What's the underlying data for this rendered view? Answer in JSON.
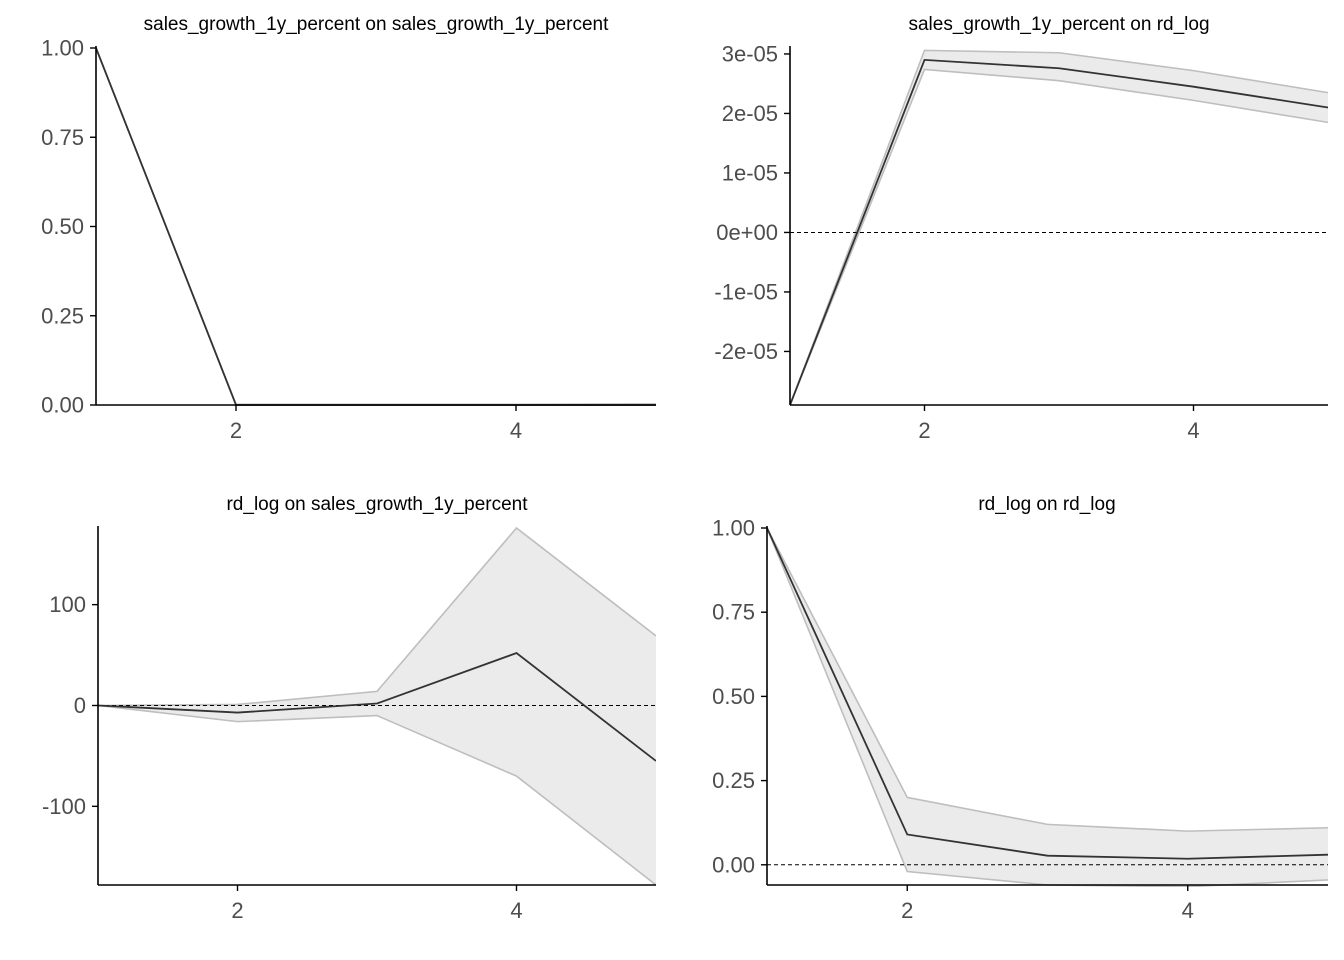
{
  "chart_data": [
    {
      "type": "line",
      "title": "sales_growth_1y_percent on sales_growth_1y_percent",
      "x": [
        1,
        2,
        3,
        4,
        5
      ],
      "xlim": [
        1,
        5
      ],
      "ylim": [
        0,
        1
      ],
      "xticks": [
        2,
        4
      ],
      "xtick_labels": [
        "2",
        "4"
      ],
      "yticks": [
        0,
        0.25,
        0.5,
        0.75,
        1
      ],
      "ytick_labels": [
        "0.00",
        "0.25",
        "0.50",
        "0.75",
        "1.00"
      ],
      "zero_line": false,
      "series": [
        {
          "role": "irf",
          "values": [
            1,
            0.0,
            0.0,
            0.0,
            0.0
          ]
        },
        {
          "role": "lower",
          "values": [
            1,
            0.0,
            0.0,
            0.0,
            0.0
          ]
        },
        {
          "role": "upper",
          "values": [
            1,
            0.002,
            0.002,
            0.002,
            0.003
          ]
        }
      ]
    },
    {
      "type": "line",
      "title": "sales_growth_1y_percent on rd_log",
      "x": [
        1,
        2,
        3,
        4,
        5
      ],
      "xlim": [
        1,
        5
      ],
      "ylim": [
        -2.9e-05,
        3.1e-05
      ],
      "xticks": [
        2,
        4
      ],
      "xtick_labels": [
        "2",
        "4"
      ],
      "yticks": [
        -2e-05,
        -1e-05,
        0,
        1e-05,
        2e-05,
        3e-05
      ],
      "ytick_labels": [
        "-2e-05",
        "-1e-05",
        "0e+00",
        "1e-05",
        "2e-05",
        "3e-05"
      ],
      "zero_line": true,
      "series": [
        {
          "role": "irf",
          "values": [
            -2.9e-05,
            2.9e-05,
            2.76e-05,
            2.45e-05,
            2.1e-05
          ]
        },
        {
          "role": "lower",
          "values": [
            -2.9e-05,
            2.74e-05,
            2.55e-05,
            2.22e-05,
            1.85e-05
          ]
        },
        {
          "role": "upper",
          "values": [
            -2.9e-05,
            3.06e-05,
            3.02e-05,
            2.72e-05,
            2.35e-05
          ]
        }
      ]
    },
    {
      "type": "line",
      "title": "rd_log on sales_growth_1y_percent",
      "x": [
        1,
        2,
        3,
        4,
        5
      ],
      "xlim": [
        1,
        5
      ],
      "ylim": [
        -178,
        176
      ],
      "xticks": [
        2,
        4
      ],
      "xtick_labels": [
        "2",
        "4"
      ],
      "yticks": [
        -100,
        0,
        100
      ],
      "ytick_labels": [
        "-100",
        "0",
        "100"
      ],
      "zero_line": true,
      "series": [
        {
          "role": "irf",
          "values": [
            0,
            -7,
            2,
            52,
            -55
          ]
        },
        {
          "role": "lower",
          "values": [
            0,
            -16,
            -10,
            -70,
            -178
          ]
        },
        {
          "role": "upper",
          "values": [
            0,
            1,
            14,
            176,
            69
          ]
        }
      ]
    },
    {
      "type": "line",
      "title": "rd_log on rd_log",
      "x": [
        1,
        2,
        3,
        4,
        5
      ],
      "xlim": [
        1,
        5
      ],
      "ylim": [
        -0.06,
        1.0
      ],
      "xticks": [
        2,
        4
      ],
      "xtick_labels": [
        "2",
        "4"
      ],
      "yticks": [
        0,
        0.25,
        0.5,
        0.75,
        1
      ],
      "ytick_labels": [
        "0.00",
        "0.25",
        "0.50",
        "0.75",
        "1.00"
      ],
      "zero_line": true,
      "series": [
        {
          "role": "irf",
          "values": [
            1,
            0.09,
            0.027,
            0.018,
            0.03
          ]
        },
        {
          "role": "lower",
          "values": [
            1,
            -0.02,
            -0.06,
            -0.065,
            -0.045
          ]
        },
        {
          "role": "upper",
          "values": [
            1,
            0.2,
            0.12,
            0.1,
            0.11
          ]
        }
      ]
    }
  ],
  "colors": {
    "irf_line": "#333333",
    "band_fill": "#ebebeb",
    "band_edge": "#bebebe",
    "axis": "#000000",
    "zero_line": "#000000",
    "tick_text": "#4d4d4d"
  }
}
